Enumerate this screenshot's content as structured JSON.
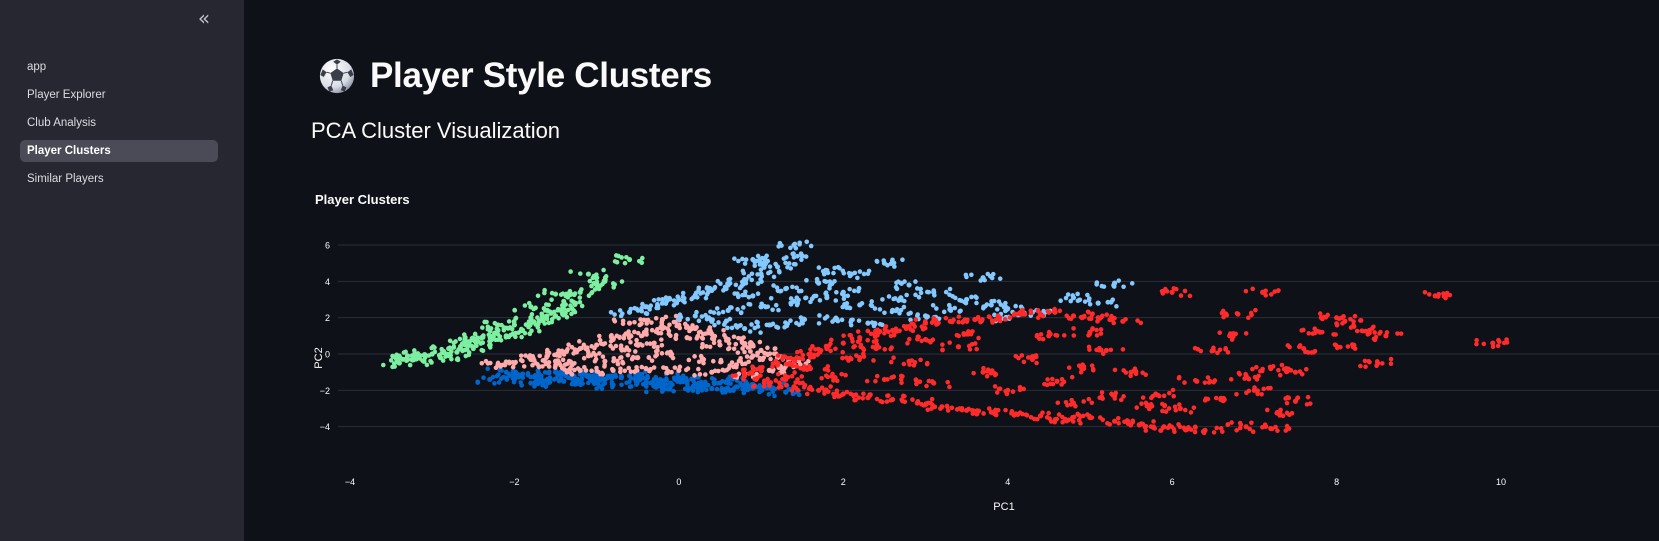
{
  "sidebar": {
    "collapse_label": "«",
    "items": [
      {
        "label": "app",
        "active": false
      },
      {
        "label": "Player Explorer",
        "active": false
      },
      {
        "label": "Club Analysis",
        "active": false
      },
      {
        "label": "Player Clusters",
        "active": true
      },
      {
        "label": "Similar Players",
        "active": false
      }
    ]
  },
  "header": {
    "icon": "soccer-ball-icon",
    "title": "Player Style Clusters"
  },
  "section": {
    "subheader": "PCA Cluster Visualization"
  },
  "colors": {
    "background": "#0e1117",
    "sidebar": "#262730",
    "grid": "#2a2e38"
  },
  "chart_data": {
    "type": "scatter",
    "title": "Player Clusters",
    "xlabel": "PC1",
    "ylabel": "PC2",
    "xlim": [
      -4.2,
      10.7
    ],
    "ylim": [
      -5.2,
      6.8
    ],
    "xticks": [
      -4,
      -2,
      0,
      2,
      4,
      6,
      8,
      10
    ],
    "yticks": [
      -4,
      -2,
      0,
      2,
      4,
      6
    ],
    "xtick_labels": [
      "−4",
      "−2",
      "0",
      "2",
      "4",
      "6",
      "8",
      "10"
    ],
    "ytick_labels": [
      "−4",
      "−2",
      "0",
      "2",
      "4",
      "6"
    ],
    "grid": "horizontal",
    "legend": "none",
    "series": [
      {
        "color": "#0066cc",
        "points": [
          [
            -2.1,
            -1.0
          ],
          [
            -1.9,
            -1.1
          ],
          [
            -1.7,
            -1.2
          ],
          [
            -1.5,
            -1.0
          ],
          [
            -1.3,
            -1.3
          ],
          [
            -1.1,
            -1.2
          ],
          [
            -0.9,
            -1.4
          ],
          [
            -0.7,
            -1.3
          ],
          [
            -0.5,
            -1.5
          ],
          [
            -0.3,
            -1.4
          ],
          [
            -0.1,
            -1.6
          ],
          [
            0.1,
            -1.5
          ],
          [
            0.3,
            -1.7
          ],
          [
            0.5,
            -1.6
          ],
          [
            0.7,
            -1.8
          ],
          [
            0.9,
            -1.7
          ],
          [
            -2.3,
            -1.4
          ],
          [
            -1.8,
            -1.6
          ],
          [
            -1.4,
            -1.5
          ],
          [
            -0.8,
            -1.7
          ],
          [
            -0.2,
            -1.9
          ],
          [
            0.4,
            -1.9
          ],
          [
            1.0,
            -2.0
          ],
          [
            1.3,
            -2.1
          ],
          [
            -2.0,
            -1.3
          ],
          [
            -1.6,
            -1.4
          ],
          [
            -1.0,
            -1.5
          ],
          [
            -0.4,
            -1.7
          ],
          [
            0.2,
            -1.8
          ],
          [
            0.8,
            -1.9
          ],
          [
            1.1,
            -1.8
          ],
          [
            -1.2,
            -1.1
          ],
          [
            -0.6,
            -1.2
          ],
          [
            0.0,
            -1.3
          ],
          [
            0.6,
            -1.4
          ]
        ]
      },
      {
        "color": "#ffabab",
        "points": [
          [
            -2.0,
            -0.5
          ],
          [
            -1.8,
            -0.3
          ],
          [
            -1.6,
            -0.1
          ],
          [
            -1.4,
            0.1
          ],
          [
            -1.2,
            0.3
          ],
          [
            -1.0,
            0.5
          ],
          [
            -0.8,
            0.8
          ],
          [
            -0.6,
            1.0
          ],
          [
            -0.4,
            1.2
          ],
          [
            -0.2,
            1.4
          ],
          [
            0.0,
            1.6
          ],
          [
            0.2,
            1.4
          ],
          [
            0.4,
            1.1
          ],
          [
            0.6,
            0.8
          ],
          [
            0.8,
            0.5
          ],
          [
            1.0,
            0.2
          ],
          [
            1.2,
            -0.2
          ],
          [
            1.4,
            -0.5
          ],
          [
            -1.7,
            -0.7
          ],
          [
            -1.3,
            -0.6
          ],
          [
            -0.9,
            -0.4
          ],
          [
            -0.5,
            -0.2
          ],
          [
            -0.1,
            0.0
          ],
          [
            0.3,
            -0.3
          ],
          [
            0.7,
            -0.6
          ],
          [
            1.1,
            -0.9
          ],
          [
            -1.5,
            -0.4
          ],
          [
            -1.1,
            -0.1
          ],
          [
            -0.7,
            0.3
          ],
          [
            -0.3,
            0.6
          ],
          [
            0.1,
            0.9
          ],
          [
            0.5,
            0.5
          ],
          [
            0.9,
            -0.1
          ],
          [
            -0.6,
            1.7
          ],
          [
            -0.2,
            1.9
          ],
          [
            -0.8,
            -0.9
          ],
          [
            -0.4,
            -0.8
          ],
          [
            0.0,
            -0.9
          ],
          [
            0.4,
            -1.0
          ],
          [
            0.8,
            -1.1
          ],
          [
            -1.2,
            -0.9
          ],
          [
            -2.2,
            -0.6
          ]
        ]
      },
      {
        "color": "#83c9ff",
        "points": [
          [
            -0.6,
            2.3
          ],
          [
            -0.4,
            2.6
          ],
          [
            -0.2,
            2.8
          ],
          [
            0.0,
            3.0
          ],
          [
            0.2,
            3.2
          ],
          [
            0.4,
            3.5
          ],
          [
            0.6,
            3.8
          ],
          [
            0.8,
            4.1
          ],
          [
            1.0,
            4.4
          ],
          [
            1.2,
            4.8
          ],
          [
            1.4,
            6.0
          ],
          [
            1.0,
            5.0
          ],
          [
            0.9,
            5.2
          ],
          [
            1.5,
            5.4
          ],
          [
            1.8,
            4.6
          ],
          [
            2.1,
            4.4
          ],
          [
            2.5,
            5.0
          ],
          [
            2.8,
            3.8
          ],
          [
            3.1,
            3.4
          ],
          [
            3.5,
            3.0
          ],
          [
            3.8,
            2.7
          ],
          [
            4.3,
            2.3
          ],
          [
            5.3,
            3.9
          ],
          [
            4.8,
            3.1
          ],
          [
            0.2,
            2.1
          ],
          [
            0.6,
            2.4
          ],
          [
            1.0,
            2.6
          ],
          [
            1.4,
            2.9
          ],
          [
            1.8,
            3.1
          ],
          [
            2.2,
            2.7
          ],
          [
            2.6,
            2.4
          ],
          [
            3.0,
            2.1
          ],
          [
            1.1,
            1.6
          ],
          [
            1.5,
            1.8
          ],
          [
            1.9,
            1.9
          ],
          [
            2.3,
            1.7
          ],
          [
            0.9,
            3.2
          ],
          [
            1.3,
            3.6
          ],
          [
            1.7,
            3.9
          ],
          [
            2.0,
            3.4
          ],
          [
            3.7,
            4.2
          ],
          [
            4.0,
            2.5
          ],
          [
            5.1,
            2.8
          ],
          [
            0.4,
            1.8
          ],
          [
            0.8,
            1.4
          ],
          [
            2.7,
            3.1
          ],
          [
            3.3,
            2.5
          ],
          [
            3.9,
            2.0
          ]
        ]
      },
      {
        "color": "#7defa1",
        "points": [
          [
            -3.4,
            -0.5
          ],
          [
            -3.2,
            -0.2
          ],
          [
            -3.0,
            0.0
          ],
          [
            -2.8,
            0.3
          ],
          [
            -2.6,
            0.6
          ],
          [
            -2.4,
            0.9
          ],
          [
            -2.2,
            1.3
          ],
          [
            -2.0,
            1.6
          ],
          [
            -1.8,
            2.0
          ],
          [
            -1.6,
            2.4
          ],
          [
            -1.4,
            2.9
          ],
          [
            -1.2,
            3.4
          ],
          [
            -1.0,
            3.8
          ],
          [
            -0.9,
            4.0
          ],
          [
            -1.1,
            4.4
          ],
          [
            -0.6,
            5.2
          ],
          [
            -3.3,
            -0.1
          ],
          [
            -3.1,
            -0.4
          ],
          [
            -2.9,
            -0.2
          ],
          [
            -2.7,
            0.1
          ],
          [
            -2.5,
            0.3
          ],
          [
            -2.3,
            0.7
          ],
          [
            -2.1,
            1.0
          ],
          [
            -1.9,
            1.3
          ],
          [
            -1.7,
            1.8
          ],
          [
            -1.5,
            2.1
          ],
          [
            -1.3,
            2.5
          ],
          [
            -2.6,
            0.9
          ],
          [
            -2.2,
            1.6
          ],
          [
            -1.8,
            2.6
          ],
          [
            -1.5,
            3.3
          ]
        ]
      },
      {
        "color": "#ff2b2b",
        "points": [
          [
            0.8,
            -1.2
          ],
          [
            1.0,
            -0.9
          ],
          [
            1.2,
            -0.6
          ],
          [
            1.4,
            -0.3
          ],
          [
            1.6,
            0.0
          ],
          [
            1.8,
            0.3
          ],
          [
            2.0,
            0.6
          ],
          [
            2.2,
            0.9
          ],
          [
            2.4,
            1.1
          ],
          [
            2.6,
            1.3
          ],
          [
            2.8,
            1.5
          ],
          [
            3.0,
            1.7
          ],
          [
            3.3,
            1.8
          ],
          [
            3.6,
            1.9
          ],
          [
            3.9,
            2.0
          ],
          [
            4.2,
            2.2
          ],
          [
            4.5,
            2.3
          ],
          [
            4.8,
            2.1
          ],
          [
            5.1,
            2.0
          ],
          [
            5.4,
            1.8
          ],
          [
            1.1,
            -1.6
          ],
          [
            1.4,
            -1.8
          ],
          [
            1.7,
            -2.0
          ],
          [
            2.0,
            -2.2
          ],
          [
            2.3,
            -2.4
          ],
          [
            2.6,
            -2.5
          ],
          [
            2.9,
            -2.7
          ],
          [
            3.2,
            -2.9
          ],
          [
            3.5,
            -3.1
          ],
          [
            3.8,
            -3.2
          ],
          [
            4.1,
            -3.3
          ],
          [
            4.4,
            -3.4
          ],
          [
            4.7,
            -3.6
          ],
          [
            5.0,
            -3.5
          ],
          [
            5.3,
            -3.7
          ],
          [
            5.6,
            -3.9
          ],
          [
            5.9,
            -4.0
          ],
          [
            6.2,
            -4.1
          ],
          [
            6.4,
            -4.2
          ],
          [
            6.9,
            -4.0
          ],
          [
            7.2,
            -4.1
          ],
          [
            7.3,
            -3.3
          ],
          [
            7.5,
            -2.6
          ],
          [
            7.5,
            -1.0
          ],
          [
            7.6,
            0.3
          ],
          [
            7.8,
            1.2
          ],
          [
            8.0,
            2.0
          ],
          [
            8.1,
            1.8
          ],
          [
            8.2,
            0.5
          ],
          [
            8.4,
            1.3
          ],
          [
            8.5,
            -0.5
          ],
          [
            8.6,
            1.0
          ],
          [
            9.2,
            3.2
          ],
          [
            9.9,
            0.6
          ],
          [
            7.1,
            3.4
          ],
          [
            6.0,
            3.4
          ],
          [
            6.8,
            2.2
          ],
          [
            6.5,
            0.2
          ],
          [
            6.3,
            -1.5
          ],
          [
            6.6,
            -2.5
          ],
          [
            5.8,
            -2.2
          ],
          [
            5.5,
            -1.0
          ],
          [
            5.2,
            0.2
          ],
          [
            4.9,
            -0.8
          ],
          [
            4.6,
            -1.5
          ],
          [
            4.3,
            -0.3
          ],
          [
            4.0,
            -2.0
          ],
          [
            3.7,
            -1.0
          ],
          [
            3.4,
            0.4
          ],
          [
            3.1,
            -1.6
          ],
          [
            2.8,
            -0.4
          ],
          [
            2.5,
            -1.4
          ],
          [
            2.2,
            -0.2
          ],
          [
            1.9,
            -1.3
          ],
          [
            1.6,
            -0.8
          ],
          [
            1.3,
            -1.4
          ],
          [
            7.0,
            -2.0
          ],
          [
            6.1,
            -3.0
          ],
          [
            5.7,
            -2.8
          ],
          [
            4.5,
            1.0
          ],
          [
            5.0,
            1.2
          ],
          [
            6.7,
            1.0
          ],
          [
            7.2,
            -0.8
          ],
          [
            6.9,
            -1.2
          ],
          [
            5.3,
            -2.3
          ],
          [
            4.8,
            -2.7
          ],
          [
            3.0,
            0.8
          ],
          [
            3.5,
            1.1
          ],
          [
            2.4,
            0.3
          ]
        ]
      }
    ]
  }
}
